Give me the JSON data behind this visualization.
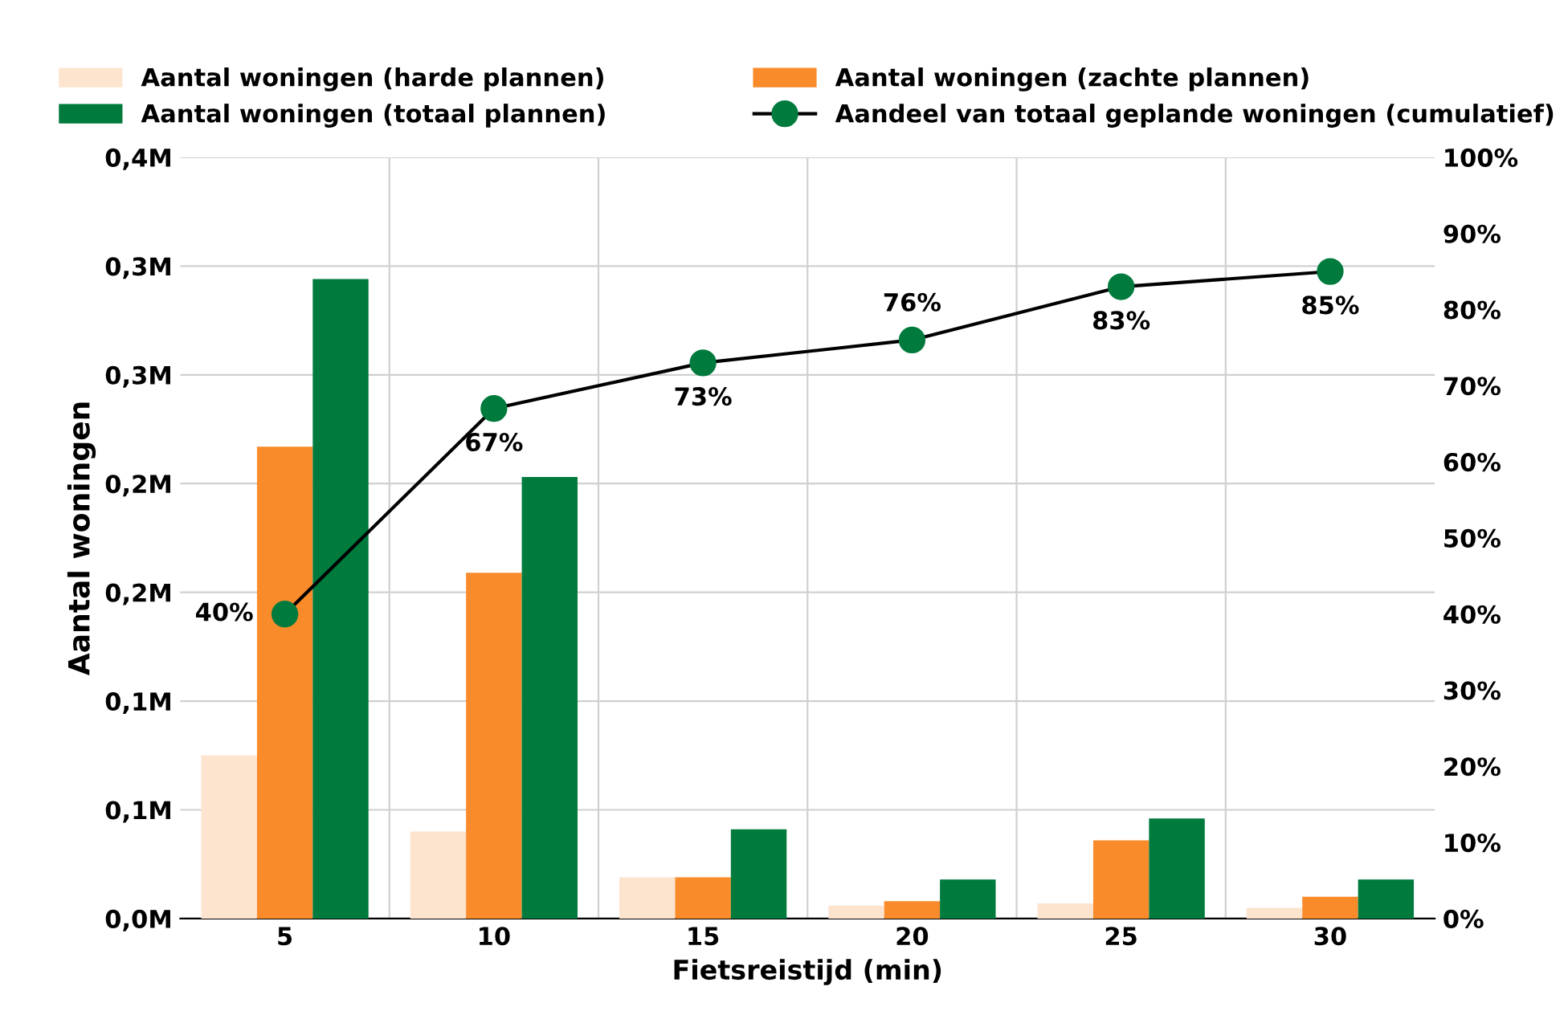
{
  "chart_data": {
    "type": "bar",
    "xlabel": "Fietsreistijd (min)",
    "ylabel": "Aantal woningen",
    "categories": [
      "5",
      "10",
      "15",
      "20",
      "25",
      "30"
    ],
    "series": [
      {
        "name": "Aantal woningen (harde plannen)",
        "color": "#fde4cf",
        "values": [
          0.075,
          0.04,
          0.019,
          0.006,
          0.007,
          0.005
        ]
      },
      {
        "name": "Aantal woningen (zachte plannen)",
        "color": "#f98b2b",
        "values": [
          0.217,
          0.159,
          0.019,
          0.008,
          0.036,
          0.01
        ]
      },
      {
        "name": "Aantal woningen (totaal plannen)",
        "color": "#007a3d",
        "values": [
          0.294,
          0.203,
          0.041,
          0.018,
          0.046,
          0.018
        ]
      },
      {
        "name": "Aandeel van totaal geplande woningen (cumulatief)",
        "type": "line",
        "axis": "y2",
        "color": "#007a3d",
        "marker": "circle",
        "values": [
          40,
          67,
          73,
          76,
          83,
          85
        ],
        "value_labels": [
          "40%",
          "67%",
          "73%",
          "76%",
          "83%",
          "85%"
        ]
      }
    ],
    "ylim": [
      0,
      0.35
    ],
    "yticks": [
      {
        "value": 0,
        "label": "0,0M"
      },
      {
        "value": 0.05,
        "label": "0,1M"
      },
      {
        "value": 0.1,
        "label": "0,1M"
      },
      {
        "value": 0.15,
        "label": "0,2M"
      },
      {
        "value": 0.2,
        "label": "0,2M"
      },
      {
        "value": 0.25,
        "label": "0,3M"
      },
      {
        "value": 0.3,
        "label": "0,3M"
      },
      {
        "value": 0.35,
        "label": "0,4M"
      }
    ],
    "y2lim": [
      0,
      100
    ],
    "y2ticks": [
      {
        "value": 0,
        "label": "0%"
      },
      {
        "value": 10,
        "label": "10%"
      },
      {
        "value": 20,
        "label": "20%"
      },
      {
        "value": 30,
        "label": "30%"
      },
      {
        "value": 40,
        "label": "40%"
      },
      {
        "value": 50,
        "label": "50%"
      },
      {
        "value": 60,
        "label": "60%"
      },
      {
        "value": 70,
        "label": "70%"
      },
      {
        "value": 80,
        "label": "80%"
      },
      {
        "value": 90,
        "label": "90%"
      },
      {
        "value": 100,
        "label": "100%"
      }
    ],
    "grid": true,
    "legend": "top"
  }
}
